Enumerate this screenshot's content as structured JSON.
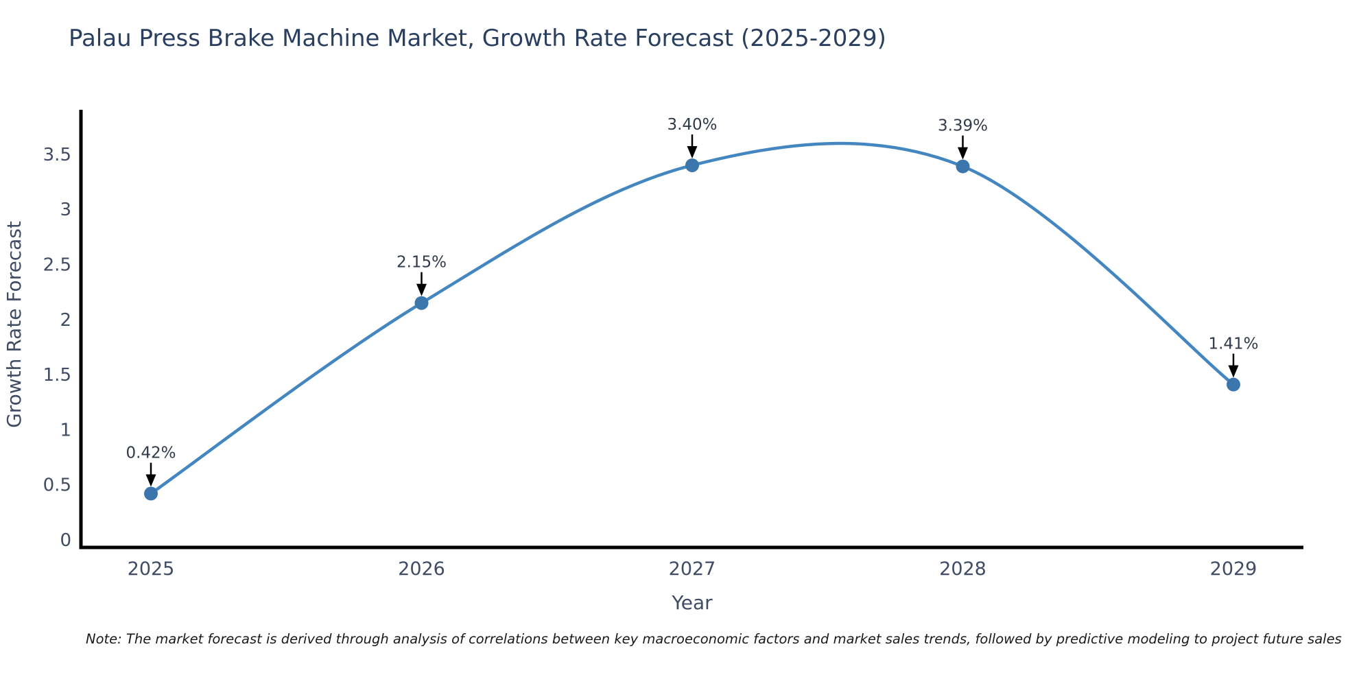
{
  "title": "Palau Press Brake Machine Market, Growth Rate Forecast (2025-2029)",
  "note": "Note: The market forecast is derived through analysis of correlations between key macroeconomic factors and market sales trends, followed by predictive modeling to project future sales",
  "chart_data": {
    "type": "line",
    "title": "Palau Press Brake Machine Market, Growth Rate Forecast (2025-2029)",
    "x": [
      2025,
      2026,
      2027,
      2028,
      2029
    ],
    "series": [
      {
        "name": "Growth Rate Forecast",
        "values": [
          0.42,
          2.15,
          3.4,
          3.39,
          1.41
        ],
        "point_labels": [
          "0.42%",
          "2.15%",
          "3.40%",
          "3.39%",
          "1.41%"
        ]
      }
    ],
    "xlabel": "Year",
    "ylabel": "Growth Rate Forecast",
    "xtick_labels": [
      "2025",
      "2026",
      "2027",
      "2028",
      "2029"
    ],
    "ytick_values": [
      0,
      0.5,
      1,
      1.5,
      2,
      2.5,
      3,
      3.5
    ],
    "ytick_labels": [
      "0",
      "0.5",
      "1",
      "1.5",
      "2",
      "2.5",
      "3",
      "3.5"
    ],
    "ylim": [
      0,
      3.9
    ],
    "grid": false,
    "legend_position": "none",
    "smooth_line": true,
    "colors": {
      "line": "#4487c0",
      "marker": "#3b76ac",
      "axis_spine": "#000000",
      "tick_label": "#3f4c63",
      "axis_title": "#3f4c63",
      "annotation_text": "#2f3a4a",
      "annotation_arrow": "#000000",
      "title": "#2a3f5f",
      "background": "#ffffff"
    }
  }
}
